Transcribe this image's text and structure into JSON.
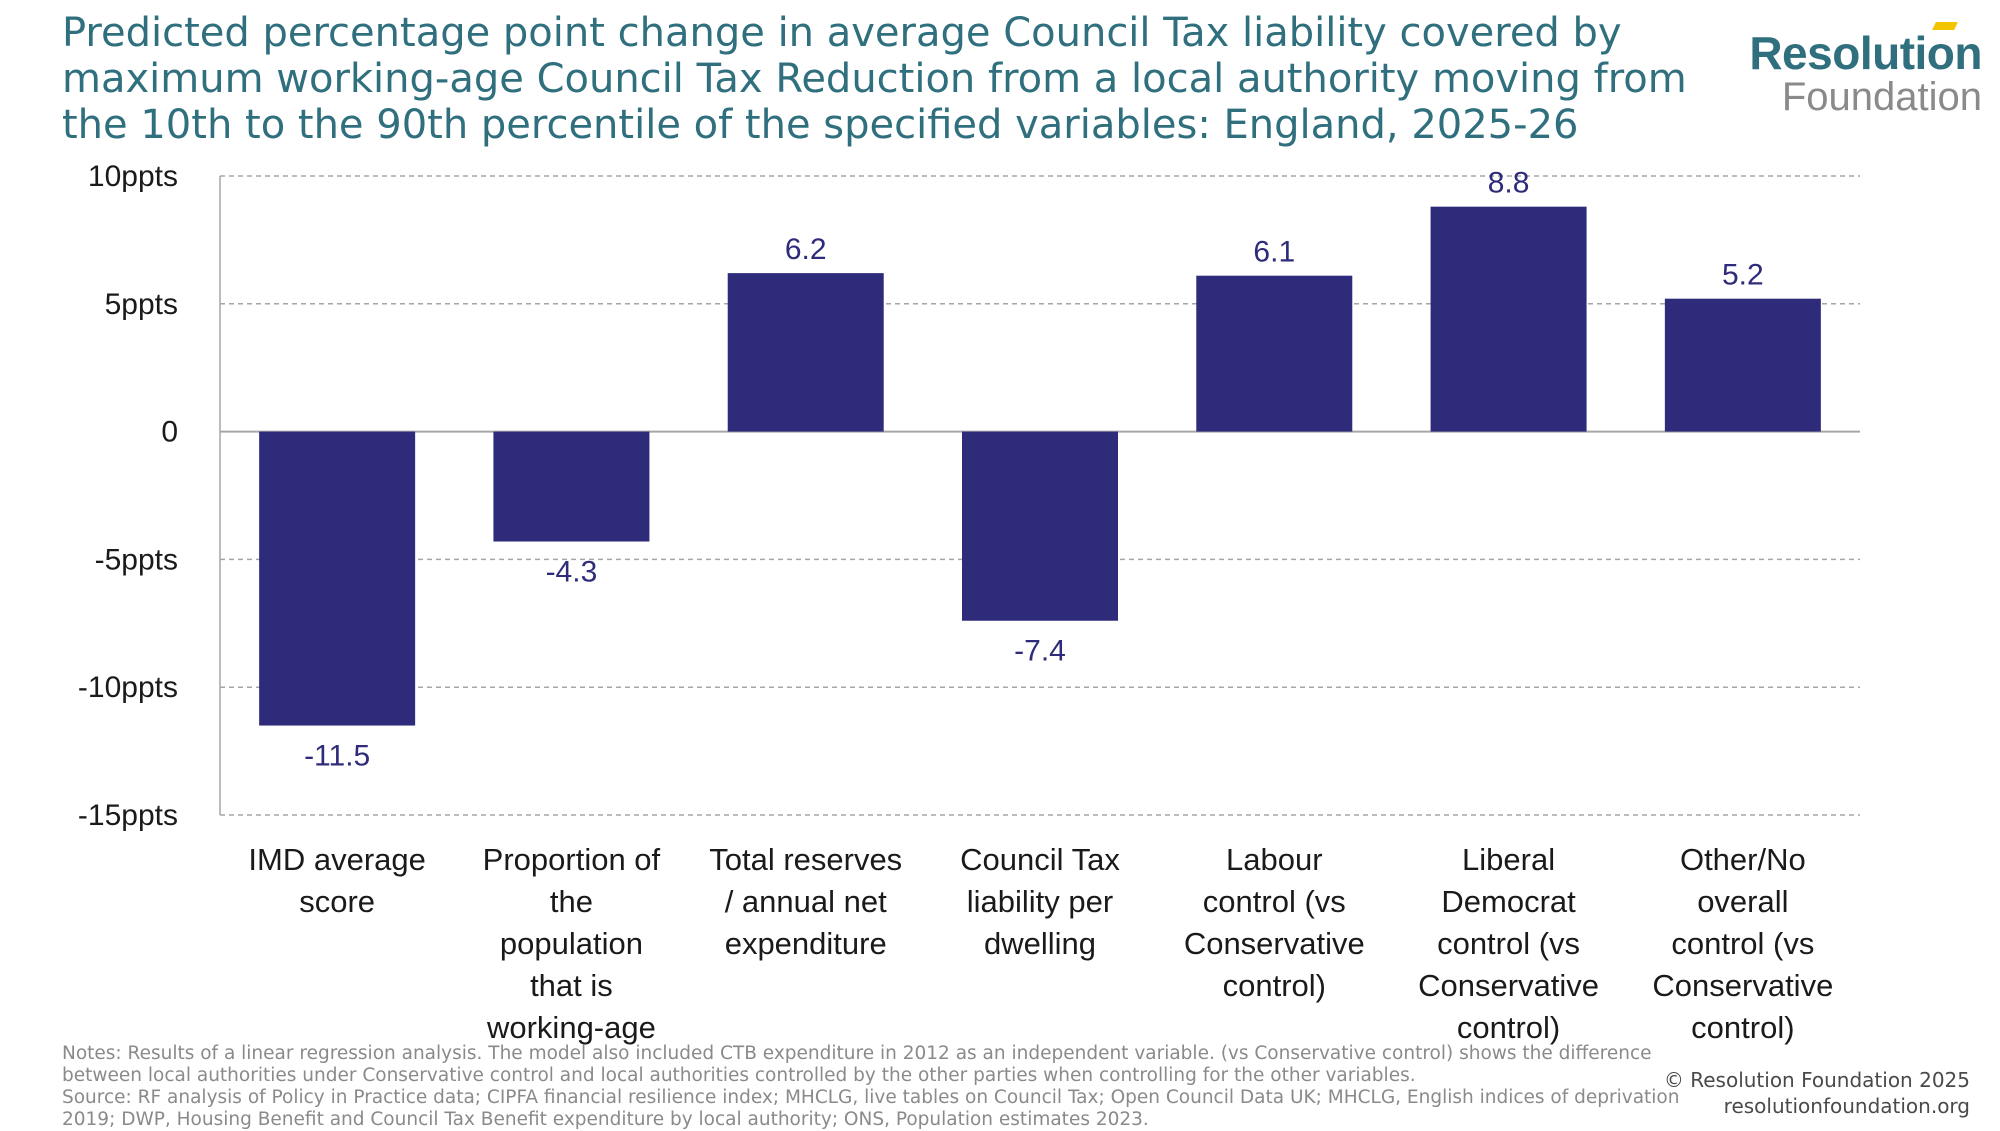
{
  "header": {
    "title": "Predicted percentage point change in average Council Tax liability covered by maximum working-age Council Tax Reduction from a local authority moving from the 10th to the 90th percentile of the specified variables: England, 2025-26"
  },
  "logo": {
    "line1": "Resolution",
    "line2": "Foundation"
  },
  "colors": {
    "bar": "#2e2b7a",
    "title": "#2f6f7e",
    "grid": "#a6a6a6",
    "axis": "#a6a6a6",
    "logo_accent": "#f2c500"
  },
  "chart_data": {
    "type": "bar",
    "title": "Predicted percentage point change in average Council Tax liability covered by maximum working-age Council Tax Reduction from a local authority moving from the 10th to the 90th percentile of the specified variables: England, 2025-26",
    "categories": [
      [
        "IMD average",
        "score"
      ],
      [
        "Proportion of",
        "the",
        "population",
        "that is",
        "working-age"
      ],
      [
        "Total reserves",
        "/ annual net",
        "expenditure"
      ],
      [
        "Council Tax",
        "liability per",
        "dwelling"
      ],
      [
        "Labour",
        "control (vs",
        "Conservative",
        "control)"
      ],
      [
        "Liberal",
        "Democrat",
        "control (vs",
        "Conservative",
        "control)"
      ],
      [
        "Other/No",
        "overall",
        "control (vs",
        "Conservative",
        "control)"
      ]
    ],
    "values": [
      -11.5,
      -4.3,
      6.2,
      -7.4,
      6.1,
      8.8,
      5.2
    ],
    "value_labels": [
      "-11.5",
      "-4.3",
      "6.2",
      "-7.4",
      "6.1",
      "8.8",
      "5.2"
    ],
    "ylim": [
      -15,
      10
    ],
    "yticks": [
      10,
      5,
      0,
      -5,
      -10,
      -15
    ],
    "ytick_labels": [
      "10ppts",
      "5ppts",
      "0",
      "-5ppts",
      "-10ppts",
      "-15ppts"
    ],
    "grid": true,
    "xlabel": "",
    "ylabel": ""
  },
  "footer": {
    "notes": "Notes: Results of a linear regression analysis. The model also included CTB expenditure in 2012 as an independent variable. (vs Conservative control) shows the difference between local authorities under Conservative control and local authorities controlled by the other parties when controlling for the other variables.",
    "source": "Source: RF analysis of Policy in Practice data; CIPFA financial resilience index; MHCLG, live tables on Council Tax; Open Council Data UK; MHCLG, English indices of deprivation 2019; DWP, Housing Benefit and Council Tax Benefit expenditure by local authority; ONS, Population estimates 2023.",
    "copyright": "© Resolution Foundation 2025",
    "website": "resolutionfoundation.org"
  }
}
